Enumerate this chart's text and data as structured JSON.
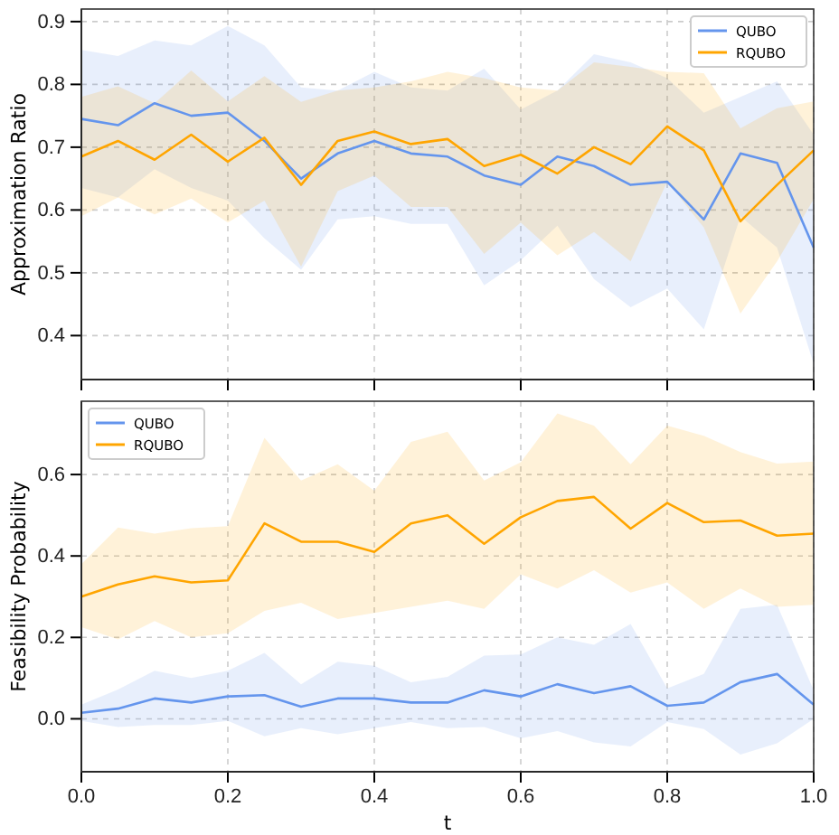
{
  "chart_data": [
    {
      "type": "line",
      "ylabel": "Approximation Ratio",
      "x": [
        0,
        0.05,
        0.1,
        0.15,
        0.2,
        0.25,
        0.3,
        0.35,
        0.4,
        0.45,
        0.5,
        0.55,
        0.6,
        0.65,
        0.7,
        0.75,
        0.8,
        0.85,
        0.9,
        0.95,
        1.0
      ],
      "xlim": [
        0,
        1
      ],
      "xticks": [
        0,
        0.2,
        0.4,
        0.6,
        0.8,
        1.0
      ],
      "ylim": [
        0.33,
        0.92
      ],
      "yticks": [
        0.4,
        0.5,
        0.6,
        0.7,
        0.8,
        0.9
      ],
      "tick_labels": "y",
      "grid": true,
      "legend": "top right",
      "line_style": "solid",
      "marker": "none",
      "series": [
        {
          "name": "QUBO",
          "color": "#6495ed",
          "values": [
            0.745,
            0.735,
            0.77,
            0.75,
            0.755,
            0.71,
            0.65,
            0.69,
            0.71,
            0.69,
            0.685,
            0.655,
            0.64,
            0.685,
            0.67,
            0.64,
            0.645,
            0.585,
            0.69,
            0.675,
            0.54
          ],
          "upper": [
            0.855,
            0.845,
            0.87,
            0.862,
            0.893,
            0.862,
            0.795,
            0.79,
            0.82,
            0.795,
            0.79,
            0.825,
            0.76,
            0.79,
            0.848,
            0.835,
            0.81,
            0.755,
            0.78,
            0.805,
            0.72
          ],
          "lower": [
            0.635,
            0.62,
            0.665,
            0.635,
            0.615,
            0.555,
            0.505,
            0.585,
            0.59,
            0.578,
            0.578,
            0.48,
            0.52,
            0.575,
            0.49,
            0.445,
            0.475,
            0.41,
            0.59,
            0.54,
            0.355
          ]
        },
        {
          "name": "RQUBO",
          "color": "#ffa500",
          "values": [
            0.685,
            0.71,
            0.68,
            0.72,
            0.677,
            0.715,
            0.64,
            0.71,
            0.725,
            0.705,
            0.713,
            0.67,
            0.688,
            0.658,
            0.7,
            0.673,
            0.733,
            0.695,
            0.582,
            0.64,
            0.695
          ],
          "upper": [
            0.78,
            0.797,
            0.77,
            0.822,
            0.773,
            0.813,
            0.772,
            0.79,
            0.795,
            0.805,
            0.82,
            0.81,
            0.795,
            0.79,
            0.835,
            0.828,
            0.82,
            0.818,
            0.73,
            0.762,
            0.773
          ],
          "lower": [
            0.59,
            0.62,
            0.593,
            0.618,
            0.58,
            0.615,
            0.51,
            0.63,
            0.655,
            0.605,
            0.605,
            0.53,
            0.58,
            0.528,
            0.565,
            0.518,
            0.645,
            0.572,
            0.435,
            0.518,
            0.617
          ]
        }
      ]
    },
    {
      "type": "line",
      "xlabel": "t",
      "ylabel": "Feasibility Probability",
      "x": [
        0,
        0.05,
        0.1,
        0.15,
        0.2,
        0.25,
        0.3,
        0.35,
        0.4,
        0.45,
        0.5,
        0.55,
        0.6,
        0.65,
        0.7,
        0.75,
        0.8,
        0.85,
        0.9,
        0.95,
        1.0
      ],
      "xlim": [
        0,
        1
      ],
      "xticks": [
        {
          "value": 0,
          "label": "0.0"
        },
        0.2,
        0.4,
        0.6,
        0.8,
        {
          "value": 1,
          "label": "1.0"
        }
      ],
      "ylim": [
        -0.13,
        0.78
      ],
      "yticks": [
        {
          "value": 0,
          "label": "0.0"
        },
        0.2,
        0.4,
        0.6
      ],
      "grid": true,
      "legend": "top left",
      "line_style": "solid",
      "marker": "none",
      "series": [
        {
          "name": "QUBO",
          "color": "#6495ed",
          "values": [
            0.015,
            0.025,
            0.05,
            0.04,
            0.055,
            0.058,
            0.03,
            0.05,
            0.05,
            0.04,
            0.04,
            0.07,
            0.055,
            0.085,
            0.063,
            0.08,
            0.032,
            0.04,
            0.09,
            0.11,
            0.035
          ],
          "upper": [
            0.035,
            0.072,
            0.118,
            0.1,
            0.118,
            0.162,
            0.085,
            0.14,
            0.13,
            0.09,
            0.103,
            0.155,
            0.158,
            0.2,
            0.182,
            0.233,
            0.075,
            0.11,
            0.27,
            0.28,
            0.07
          ],
          "lower": [
            -0.005,
            -0.02,
            -0.015,
            -0.015,
            -0.005,
            -0.043,
            -0.023,
            -0.038,
            -0.023,
            -0.008,
            -0.023,
            -0.02,
            -0.048,
            -0.03,
            -0.058,
            -0.068,
            -0.008,
            -0.025,
            -0.088,
            -0.06,
            0.0
          ]
        },
        {
          "name": "RQUBO",
          "color": "#ffa500",
          "values": [
            0.3,
            0.33,
            0.35,
            0.335,
            0.34,
            0.48,
            0.435,
            0.435,
            0.41,
            0.48,
            0.5,
            0.43,
            0.495,
            0.535,
            0.545,
            0.467,
            0.53,
            0.483,
            0.487,
            0.45,
            0.455
          ],
          "upper": [
            0.38,
            0.47,
            0.455,
            0.468,
            0.473,
            0.69,
            0.585,
            0.625,
            0.56,
            0.68,
            0.705,
            0.585,
            0.63,
            0.75,
            0.72,
            0.625,
            0.72,
            0.695,
            0.655,
            0.627,
            0.632
          ],
          "lower": [
            0.225,
            0.195,
            0.24,
            0.2,
            0.21,
            0.265,
            0.285,
            0.245,
            0.26,
            0.275,
            0.29,
            0.27,
            0.355,
            0.32,
            0.365,
            0.31,
            0.335,
            0.27,
            0.32,
            0.275,
            0.28
          ]
        }
      ]
    }
  ]
}
